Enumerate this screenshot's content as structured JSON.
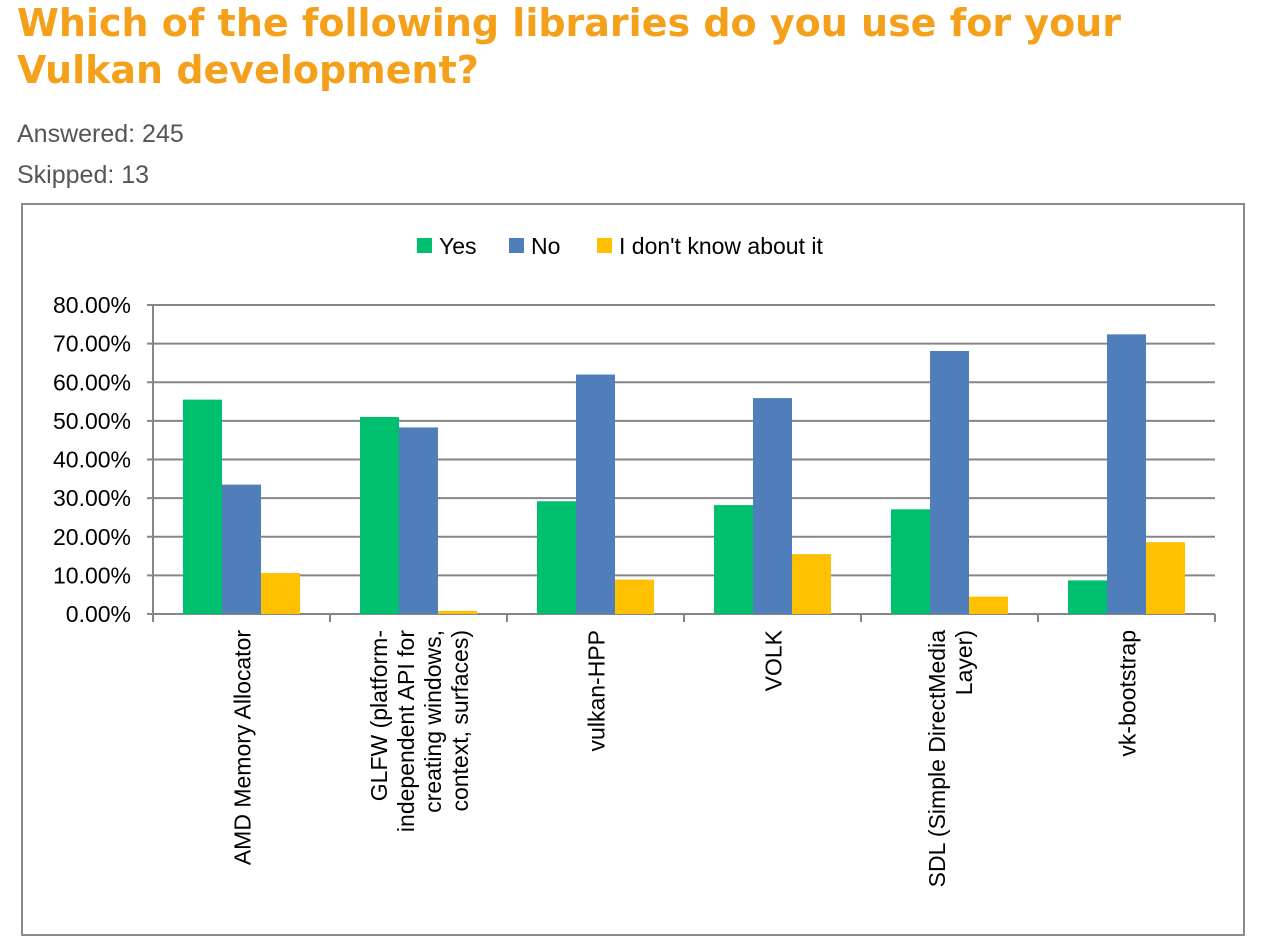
{
  "question": {
    "title": "Which of the following libraries do you use for your\nVulkan development?",
    "answered": "Answered: 245",
    "skipped": "Skipped: 13"
  },
  "colors": {
    "title": "#f5a01a",
    "yes": "#00c070",
    "no": "#4f7ebb",
    "dont_know": "#ffc000",
    "grid": "#868686",
    "frame": "#8c8c8c"
  },
  "chart_data": {
    "type": "bar",
    "title": "",
    "xlabel": "",
    "ylabel": "",
    "ylim": [
      0,
      80
    ],
    "ytick_labels": [
      "0.00%",
      "10.00%",
      "20.00%",
      "30.00%",
      "40.00%",
      "50.00%",
      "60.00%",
      "70.00%",
      "80.00%"
    ],
    "grid": true,
    "legend_position": "top-center",
    "categories": [
      [
        "AMD Memory Allocator"
      ],
      [
        "GLFW (platform-",
        "independent API for",
        "creating windows,",
        "context, surfaces)"
      ],
      [
        "vulkan-HPP"
      ],
      [
        "VOLK"
      ],
      [
        "SDL (Simple DirectMedia",
        "Layer)"
      ],
      [
        "vk-bootstrap"
      ]
    ],
    "series": [
      {
        "name": "Yes",
        "color": "#00c070",
        "values": [
          55.5,
          51.0,
          29.2,
          28.2,
          27.1,
          8.7
        ]
      },
      {
        "name": "No",
        "color": "#4f7ebb",
        "values": [
          33.5,
          48.3,
          62.0,
          55.9,
          68.1,
          72.4
        ]
      },
      {
        "name": "I don't know about it",
        "color": "#ffc000",
        "values": [
          10.6,
          0.8,
          8.9,
          15.5,
          4.5,
          18.6
        ]
      }
    ]
  }
}
